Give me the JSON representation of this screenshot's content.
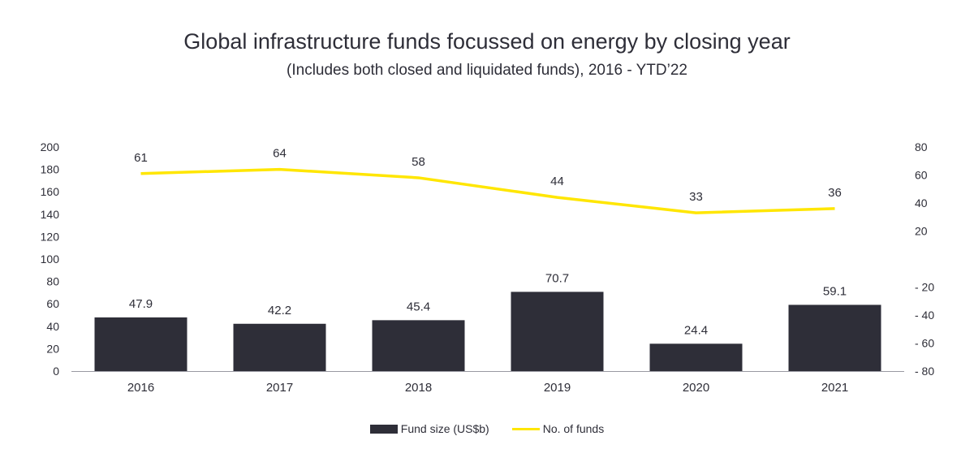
{
  "chart_data": {
    "type": "bar",
    "title": "Global infrastructure funds focussed on energy by closing year",
    "subtitle": "(Includes both closed and liquidated funds), 2016 - YTD’22",
    "categories": [
      "2016",
      "2017",
      "2018",
      "2019",
      "2020",
      "2021"
    ],
    "series": [
      {
        "name": "Fund size (US$b)",
        "type": "bar",
        "axis": "left",
        "color": "#2e2e38",
        "values": [
          47.9,
          42.2,
          45.4,
          70.7,
          24.4,
          59.1
        ],
        "labels": [
          "47.9",
          "42.2",
          "45.4",
          "70.7",
          "24.4",
          "59.1"
        ]
      },
      {
        "name": "No. of funds",
        "type": "line",
        "axis": "right",
        "color": "#ffe600",
        "values": [
          61,
          64,
          58,
          44,
          33,
          36
        ],
        "labels": [
          "61",
          "64",
          "58",
          "44",
          "33",
          "36"
        ]
      }
    ],
    "y_left": {
      "ylim": [
        0,
        200
      ],
      "ticks": [
        "0",
        "20",
        "40",
        "60",
        "80",
        "100",
        "120",
        "140",
        "160",
        "180",
        "200"
      ]
    },
    "y_right": {
      "ylim": [
        -80,
        80
      ],
      "ticks": [
        {
          "value": 80,
          "label": "80"
        },
        {
          "value": 60,
          "label": "60"
        },
        {
          "value": 40,
          "label": "40"
        },
        {
          "value": 20,
          "label": "20"
        },
        {
          "value": -20,
          "label": "- 20"
        },
        {
          "value": -40,
          "label": "- 40"
        },
        {
          "value": -60,
          "label": "- 60"
        },
        {
          "value": -80,
          "label": "- 80"
        }
      ]
    },
    "grid": false,
    "legend_position": "bottom-center"
  }
}
